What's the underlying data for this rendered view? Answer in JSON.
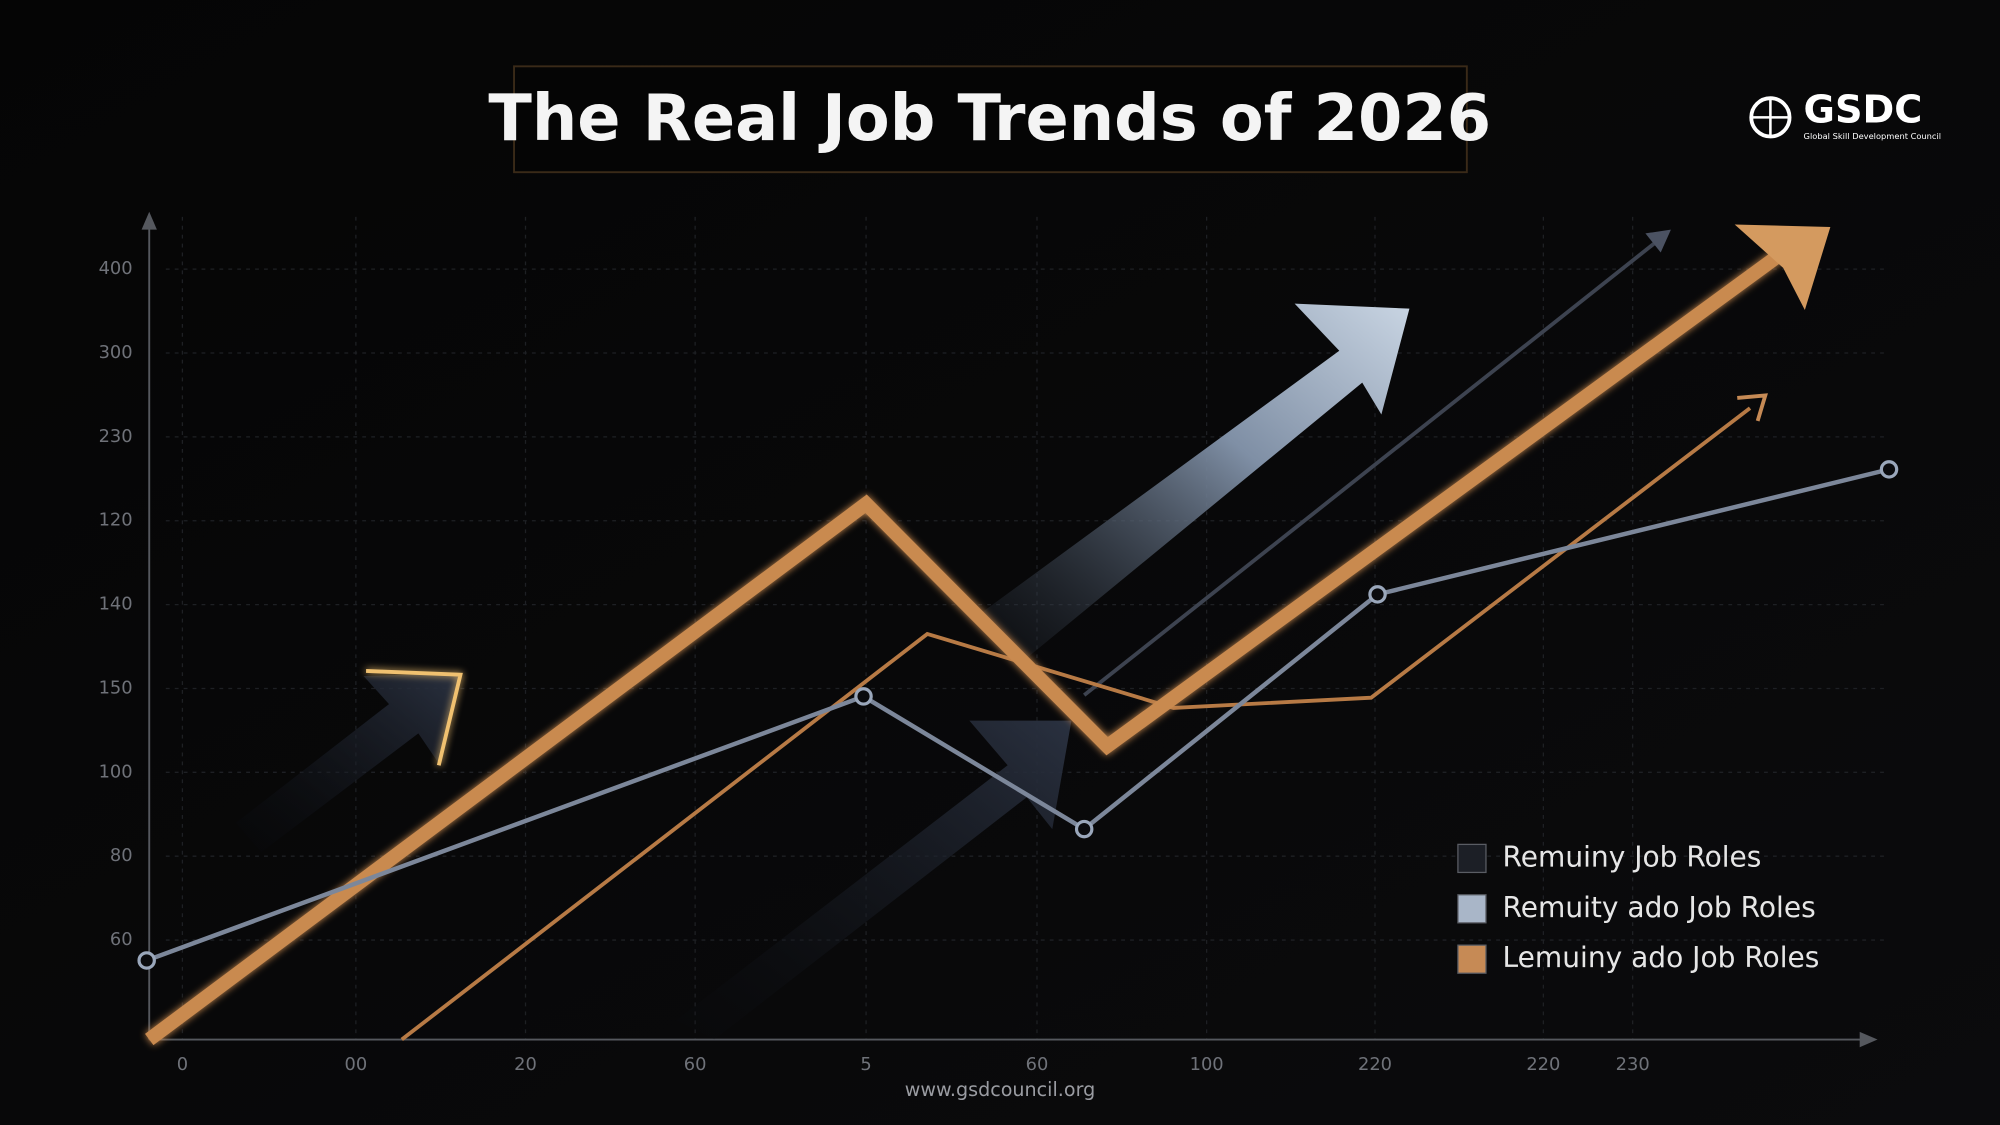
{
  "header": {
    "title": "The Real Job Trends of 2026"
  },
  "logo": {
    "name": "GSDC",
    "subtitle": "Global Skill Development Council"
  },
  "axes": {
    "y_labels": [
      "400",
      "300",
      "230",
      "120",
      "140",
      "150",
      "100",
      "80",
      "60"
    ],
    "x_labels": [
      "0",
      "00",
      "20",
      "60",
      "5",
      "60",
      "100",
      "220",
      "220",
      "230"
    ]
  },
  "legend": [
    {
      "name": "Remuiny Job Roles",
      "color": "#1c1f26"
    },
    {
      "name": "Remuity ado Job Roles",
      "color": "#a9b6c8"
    },
    {
      "name": "Lemuiny ado Job Roles",
      "color": "#c68a55"
    }
  ],
  "footer": "www.gsdcouncil.org"
}
